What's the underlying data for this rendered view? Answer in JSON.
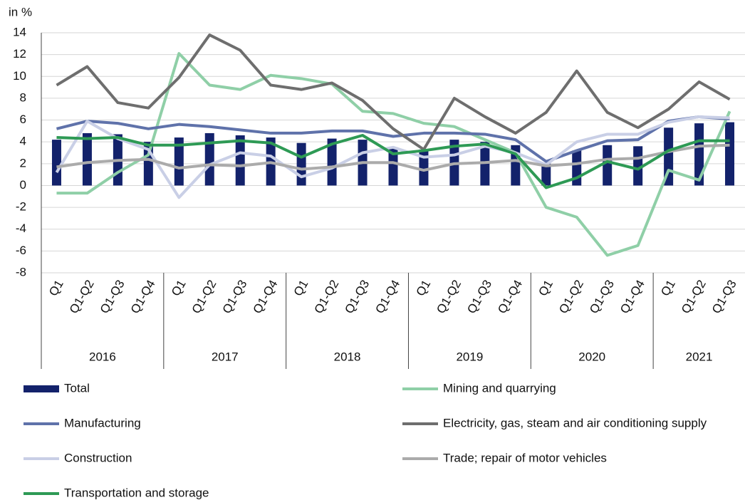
{
  "chart_data": {
    "type": "combo",
    "y_label": "in %",
    "groups": [
      {
        "name": "2016",
        "categories": [
          "Q1",
          "Q1-Q2",
          "Q1-Q3",
          "Q1-Q4"
        ]
      },
      {
        "name": "2017",
        "categories": [
          "Q1",
          "Q1-Q2",
          "Q1-Q3",
          "Q1-Q4"
        ]
      },
      {
        "name": "2018",
        "categories": [
          "Q1",
          "Q1-Q2",
          "Q1-Q3",
          "Q1-Q4"
        ]
      },
      {
        "name": "2019",
        "categories": [
          "Q1",
          "Q1-Q2",
          "Q1-Q3",
          "Q1-Q4"
        ]
      },
      {
        "name": "2020",
        "categories": [
          "Q1",
          "Q1-Q2",
          "Q1-Q3",
          "Q1-Q4"
        ]
      },
      {
        "name": "2021",
        "categories": [
          "Q1",
          "Q1-Q2",
          "Q1-Q3"
        ]
      }
    ],
    "ylim": [
      -8,
      14
    ],
    "yticks": [
      -8,
      -6,
      -4,
      -2,
      0,
      2,
      4,
      6,
      8,
      10,
      12,
      14
    ],
    "grid": true,
    "series": [
      {
        "name": "Total",
        "type": "bar",
        "color": "#13226b",
        "values": [
          4.2,
          4.8,
          4.7,
          4.0,
          4.4,
          4.8,
          4.6,
          4.4,
          3.9,
          4.3,
          4.2,
          3.5,
          3.3,
          4.2,
          4.0,
          3.7,
          2.0,
          3.2,
          3.7,
          3.6,
          5.3,
          5.7,
          5.8
        ]
      },
      {
        "name": "Mining and quarrying",
        "type": "line",
        "color": "#8fcfa7",
        "values": [
          -0.7,
          -0.7,
          1.2,
          2.8,
          12.1,
          9.2,
          8.8,
          10.1,
          9.8,
          9.3,
          6.8,
          6.6,
          5.7,
          5.4,
          4.2,
          3.0,
          -2.0,
          -2.9,
          -6.4,
          -5.5,
          1.4,
          0.5,
          6.8
        ]
      },
      {
        "name": "Manufacturing",
        "type": "line",
        "color": "#5f72aa",
        "values": [
          5.2,
          5.9,
          5.7,
          5.2,
          5.6,
          5.4,
          5.1,
          4.8,
          4.8,
          5.0,
          5.0,
          4.5,
          4.8,
          4.8,
          4.7,
          4.2,
          2.2,
          3.2,
          4.1,
          4.2,
          5.9,
          6.3,
          6.1
        ]
      },
      {
        "name": "Electricity, gas, steam and air conditioning supply",
        "type": "line",
        "color": "#6e6e6e",
        "values": [
          9.2,
          10.9,
          7.6,
          7.1,
          9.9,
          13.8,
          12.4,
          9.2,
          8.8,
          9.4,
          7.8,
          5.2,
          3.3,
          8.0,
          6.3,
          4.8,
          6.7,
          10.5,
          6.7,
          5.3,
          7.0,
          9.5,
          7.9
        ]
      },
      {
        "name": "Construction",
        "type": "line",
        "color": "#c9cfe6",
        "values": [
          1.2,
          5.9,
          4.3,
          3.3,
          -1.1,
          1.9,
          3.0,
          2.7,
          0.8,
          1.6,
          3.0,
          3.5,
          2.6,
          2.8,
          3.6,
          3.0,
          1.9,
          4.0,
          4.7,
          4.7,
          5.8,
          6.3,
          6.2
        ]
      },
      {
        "name": "Trade; repair of motor vehicles",
        "type": "line",
        "color": "#ababab",
        "values": [
          1.7,
          2.1,
          2.3,
          2.4,
          1.6,
          1.9,
          1.8,
          2.1,
          1.5,
          1.7,
          2.1,
          2.1,
          1.4,
          2.0,
          2.1,
          2.3,
          1.8,
          2.0,
          2.4,
          2.5,
          3.1,
          3.6,
          3.7
        ]
      },
      {
        "name": "Transportation and storage",
        "type": "line",
        "color": "#2e9a55",
        "values": [
          4.4,
          4.3,
          4.4,
          3.7,
          3.7,
          3.9,
          4.1,
          3.9,
          2.6,
          3.8,
          4.6,
          2.9,
          3.2,
          3.6,
          3.8,
          2.9,
          -0.2,
          0.7,
          2.2,
          1.5,
          3.2,
          4.1,
          4.1
        ]
      }
    ]
  }
}
